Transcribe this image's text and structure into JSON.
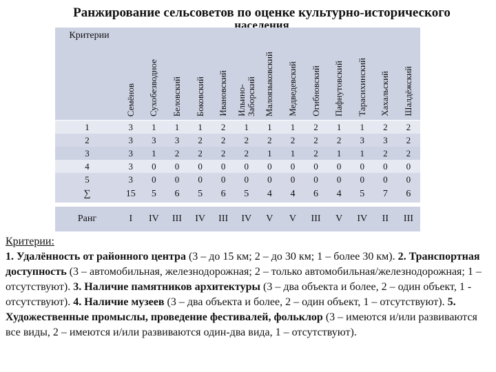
{
  "title": {
    "line1": "Ранжирование сельсоветов по оценке культурно-исторического",
    "line2": "населения"
  },
  "table": {
    "corner_label": "Критерии",
    "columns": [
      "Семёнов",
      "Сухобезводное",
      "Беловский",
      "Боковский",
      "Ивановский",
      "Ильино-\nЗаборский",
      "Малоязыковский",
      "Медведевский",
      "Огибновский",
      "Пафнутовский",
      "Тарасихинский",
      "Хахальский",
      "Шалдёжский"
    ],
    "rows": [
      {
        "label": "1",
        "values": [
          "3",
          "1",
          "1",
          "1",
          "2",
          "1",
          "1",
          "1",
          "2",
          "1",
          "1",
          "2",
          "2"
        ]
      },
      {
        "label": "2",
        "values": [
          "3",
          "3",
          "3",
          "2",
          "2",
          "2",
          "2",
          "2",
          "2",
          "2",
          "3",
          "3",
          "2"
        ]
      },
      {
        "label": "3",
        "values": [
          "3",
          "1",
          "2",
          "2",
          "2",
          "2",
          "1",
          "1",
          "2",
          "1",
          "1",
          "2",
          "2"
        ]
      },
      {
        "label": "4",
        "values": [
          "3",
          "0",
          "0",
          "0",
          "0",
          "0",
          "0",
          "0",
          "0",
          "0",
          "0",
          "0",
          "0"
        ]
      },
      {
        "label": "5",
        "values": [
          "3",
          "0",
          "0",
          "0",
          "0",
          "0",
          "0",
          "0",
          "0",
          "0",
          "0",
          "0",
          "0"
        ]
      }
    ],
    "sum_row": {
      "label": "∑",
      "values": [
        "15",
        "5",
        "6",
        "5",
        "6",
        "5",
        "4",
        "4",
        "6",
        "4",
        "5",
        "7",
        "6"
      ]
    },
    "rank_row": {
      "label": "Ранг",
      "values": [
        "I",
        "IV",
        "III",
        "IV",
        "III",
        "IV",
        "V",
        "V",
        "III",
        "V",
        "IV",
        "II",
        "III"
      ]
    }
  },
  "notes": {
    "heading": "Критерии:",
    "c1_title": "1. Удалённость от районного центра",
    "c1_text": " (3 – до 15 км; 2 – до 30 км; 1 – более 30 км). ",
    "c2_title": "2. Транспортная доступность",
    "c2_text": " (3 – автомобильная, железнодорожная; 2 – только автомобильная/железнодорожная; 1 – отсутствуют). ",
    "c3_title": "3. Наличие памятников архитектуры",
    "c3_text": " (3 – два объекта и более, 2 – один объект, 1 - отсутствуют). ",
    "c4_title": "4. Наличие музеев",
    "c4_text": " (3 – два объекта и более, 2 – один объект, 1 – отсутствуют). ",
    "c5_title": "5. Художественные промыслы, проведение фестивалей, фольклор",
    "c5_text": " (3 – имеются и/или развиваются все виды, 2 – имеются и/или развиваются один-два вида, 1 – отсутствуют)."
  }
}
